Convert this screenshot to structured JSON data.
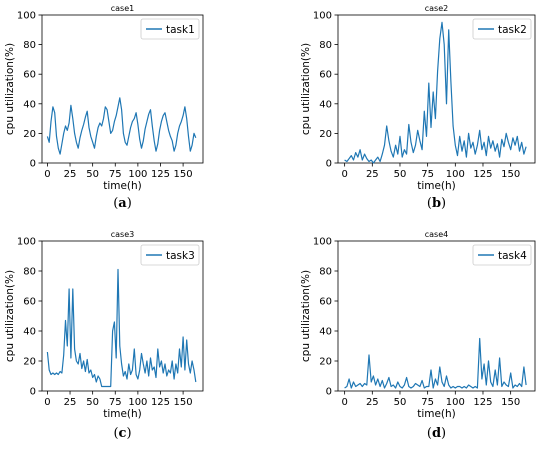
{
  "chart_data": [
    {
      "type": "line",
      "title": "case1",
      "xlabel": "time(h)",
      "ylabel": "cpu utilization(%)",
      "ylim": [
        0,
        100
      ],
      "xticks": [
        0,
        25,
        50,
        75,
        100,
        125,
        150
      ],
      "yticks": [
        0,
        20,
        40,
        60,
        80,
        100
      ],
      "legend_position": "top-right",
      "caption": "a",
      "color": "#1f77b4",
      "series": [
        {
          "name": "task1",
          "x": [
            0,
            2,
            4,
            6,
            8,
            10,
            12,
            14,
            16,
            18,
            20,
            22,
            24,
            26,
            28,
            30,
            32,
            34,
            36,
            38,
            40,
            42,
            44,
            46,
            48,
            50,
            52,
            54,
            56,
            58,
            60,
            62,
            64,
            66,
            68,
            70,
            72,
            74,
            76,
            78,
            80,
            82,
            84,
            86,
            88,
            90,
            92,
            94,
            96,
            98,
            100,
            102,
            104,
            106,
            108,
            110,
            112,
            114,
            116,
            118,
            120,
            122,
            124,
            126,
            128,
            130,
            132,
            134,
            136,
            138,
            140,
            142,
            144,
            146,
            148,
            150,
            152,
            154,
            156,
            158,
            160,
            162,
            164
          ],
          "y": [
            18,
            14,
            28,
            38,
            34,
            18,
            10,
            6,
            13,
            20,
            25,
            22,
            27,
            39,
            30,
            20,
            14,
            10,
            17,
            22,
            26,
            31,
            35,
            24,
            18,
            14,
            10,
            18,
            24,
            27,
            25,
            30,
            38,
            36,
            28,
            20,
            22,
            28,
            32,
            38,
            44,
            36,
            20,
            14,
            12,
            18,
            24,
            28,
            30,
            34,
            26,
            16,
            10,
            15,
            23,
            28,
            33,
            36,
            25,
            15,
            8,
            13,
            22,
            28,
            32,
            34,
            28,
            22,
            18,
            15,
            8,
            12,
            20,
            25,
            28,
            32,
            38,
            30,
            18,
            8,
            12,
            20,
            17
          ]
        }
      ]
    },
    {
      "type": "line",
      "title": "case2",
      "xlabel": "time(h)",
      "ylabel": "cpu utilization(%)",
      "ylim": [
        0,
        100
      ],
      "xticks": [
        0,
        25,
        50,
        75,
        100,
        125,
        150
      ],
      "yticks": [
        0,
        20,
        40,
        60,
        80,
        100
      ],
      "legend_position": "top-right",
      "caption": "b",
      "color": "#1f77b4",
      "series": [
        {
          "name": "task2",
          "x": [
            0,
            2,
            4,
            6,
            8,
            10,
            12,
            14,
            16,
            18,
            20,
            22,
            24,
            26,
            28,
            30,
            32,
            34,
            36,
            38,
            40,
            42,
            44,
            46,
            48,
            50,
            52,
            54,
            56,
            58,
            60,
            62,
            64,
            66,
            68,
            70,
            72,
            74,
            76,
            78,
            80,
            82,
            84,
            86,
            88,
            90,
            92,
            94,
            96,
            98,
            100,
            102,
            104,
            106,
            108,
            110,
            112,
            114,
            116,
            118,
            120,
            122,
            124,
            126,
            128,
            130,
            132,
            134,
            136,
            138,
            140,
            142,
            144,
            146,
            148,
            150,
            152,
            154,
            156,
            158,
            160,
            162,
            164
          ],
          "y": [
            2,
            1,
            3,
            5,
            2,
            7,
            4,
            9,
            2,
            6,
            3,
            1,
            2,
            0,
            2,
            4,
            1,
            6,
            12,
            25,
            15,
            8,
            4,
            12,
            6,
            18,
            4,
            9,
            6,
            26,
            14,
            7,
            12,
            22,
            15,
            9,
            35,
            18,
            54,
            24,
            48,
            30,
            62,
            84,
            95,
            80,
            40,
            90,
            55,
            25,
            12,
            5,
            18,
            8,
            15,
            4,
            20,
            10,
            14,
            6,
            12,
            22,
            9,
            14,
            5,
            18,
            10,
            15,
            8,
            13,
            4,
            16,
            11,
            20,
            14,
            9,
            17,
            12,
            18,
            8,
            14,
            6,
            11
          ]
        }
      ]
    },
    {
      "type": "line",
      "title": "case3",
      "xlabel": "time(h)",
      "ylabel": "cpu utilization(%)",
      "ylim": [
        0,
        100
      ],
      "xticks": [
        0,
        25,
        50,
        75,
        100,
        125,
        150
      ],
      "yticks": [
        0,
        20,
        40,
        60,
        80,
        100
      ],
      "legend_position": "top-right",
      "caption": "c",
      "color": "#1f77b4",
      "series": [
        {
          "name": "task3",
          "x": [
            0,
            2,
            4,
            6,
            8,
            10,
            12,
            14,
            16,
            18,
            20,
            22,
            24,
            26,
            28,
            30,
            32,
            34,
            36,
            38,
            40,
            42,
            44,
            46,
            48,
            50,
            52,
            54,
            56,
            58,
            60,
            62,
            64,
            66,
            68,
            70,
            72,
            74,
            76,
            78,
            80,
            82,
            84,
            86,
            88,
            90,
            92,
            94,
            96,
            98,
            100,
            102,
            104,
            106,
            108,
            110,
            112,
            114,
            116,
            118,
            120,
            122,
            124,
            126,
            128,
            130,
            132,
            134,
            136,
            138,
            140,
            142,
            144,
            146,
            148,
            150,
            152,
            154,
            156,
            158,
            160,
            162,
            164
          ],
          "y": [
            26,
            14,
            11,
            12,
            11,
            12,
            11,
            13,
            12,
            24,
            47,
            30,
            68,
            22,
            68,
            28,
            20,
            18,
            25,
            15,
            20,
            13,
            21,
            12,
            14,
            9,
            11,
            6,
            10,
            8,
            3,
            3,
            3,
            3,
            3,
            3,
            40,
            46,
            22,
            81,
            30,
            18,
            10,
            13,
            8,
            18,
            11,
            14,
            28,
            11,
            8,
            14,
            25,
            18,
            12,
            20,
            10,
            22,
            14,
            16,
            9,
            28,
            16,
            20,
            12,
            18,
            10,
            14,
            12,
            20,
            8,
            18,
            12,
            28,
            16,
            36,
            14,
            34,
            18,
            12,
            20,
            14,
            6
          ]
        }
      ]
    },
    {
      "type": "line",
      "title": "case4",
      "xlabel": "time(h)",
      "ylabel": "cpu utilization(%)",
      "ylim": [
        0,
        100
      ],
      "xticks": [
        0,
        25,
        50,
        75,
        100,
        125,
        150
      ],
      "yticks": [
        0,
        20,
        40,
        60,
        80,
        100
      ],
      "legend_position": "top-right",
      "caption": "d",
      "color": "#1f77b4",
      "series": [
        {
          "name": "task4",
          "x": [
            0,
            2,
            4,
            6,
            8,
            10,
            12,
            14,
            16,
            18,
            20,
            22,
            24,
            26,
            28,
            30,
            32,
            34,
            36,
            38,
            40,
            42,
            44,
            46,
            48,
            50,
            52,
            54,
            56,
            58,
            60,
            62,
            64,
            66,
            68,
            70,
            72,
            74,
            76,
            78,
            80,
            82,
            84,
            86,
            88,
            90,
            92,
            94,
            96,
            98,
            100,
            102,
            104,
            106,
            108,
            110,
            112,
            114,
            116,
            118,
            120,
            122,
            124,
            126,
            128,
            130,
            132,
            134,
            136,
            138,
            140,
            142,
            144,
            146,
            148,
            150,
            152,
            154,
            156,
            158,
            160,
            162,
            164
          ],
          "y": [
            2,
            3,
            8,
            2,
            6,
            3,
            4,
            5,
            3,
            5,
            4,
            24,
            6,
            10,
            4,
            8,
            3,
            7,
            2,
            5,
            9,
            3,
            4,
            2,
            6,
            3,
            2,
            4,
            9,
            3,
            2,
            3,
            5,
            4,
            3,
            7,
            2,
            3,
            3,
            14,
            2,
            8,
            4,
            16,
            6,
            3,
            10,
            4,
            2,
            3,
            2,
            3,
            3,
            2,
            3,
            2,
            4,
            3,
            2,
            3,
            2,
            35,
            8,
            18,
            4,
            20,
            6,
            3,
            14,
            4,
            22,
            3,
            6,
            4,
            3,
            12,
            2,
            4,
            3,
            5,
            3,
            16,
            4
          ]
        }
      ]
    }
  ]
}
